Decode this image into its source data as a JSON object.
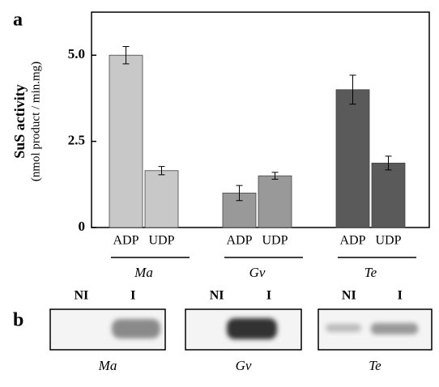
{
  "chart_data": {
    "type": "grouped-bar-error",
    "panel_label": "a",
    "y_label": "SuS activity",
    "y_sublabel": "(nmol product / min.mg)",
    "ylim": [
      0,
      6.25
    ],
    "yticks": [
      0,
      2.5,
      {
        "value": 5,
        "label": "5.0"
      }
    ],
    "groups": [
      {
        "name": "Ma",
        "color": "#c8c8c8",
        "categories": [
          "ADP",
          "UDP"
        ],
        "values": [
          5.0,
          1.65
        ],
        "errors": [
          0.25,
          0.12
        ]
      },
      {
        "name": "Gv",
        "color": "#999999",
        "categories": [
          "ADP",
          "UDP"
        ],
        "values": [
          1.0,
          1.5
        ],
        "errors": [
          0.22,
          0.1
        ]
      },
      {
        "name": "Te",
        "color": "#5a5a5a",
        "categories": [
          "ADP",
          "UDP"
        ],
        "values": [
          4.0,
          1.87
        ],
        "errors": [
          0.42,
          0.2
        ]
      }
    ]
  },
  "gel": {
    "panel_label": "b",
    "lanes": [
      "NI",
      "I"
    ]
  }
}
